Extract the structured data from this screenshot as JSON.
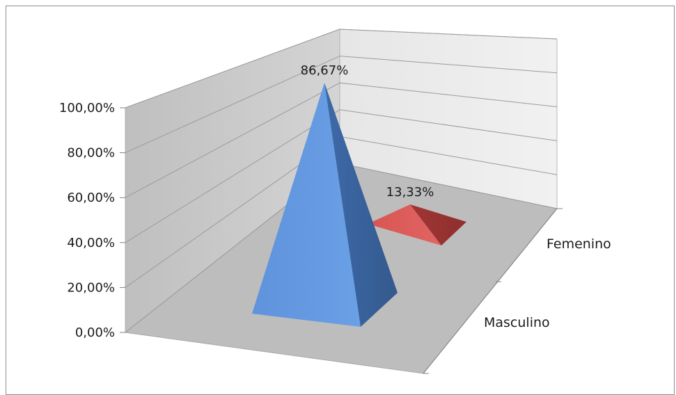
{
  "chart_data": {
    "type": "bar",
    "subtype": "3d-pyramid",
    "categories": [
      "Masculino",
      "Femenino"
    ],
    "values": [
      86.67,
      13.33
    ],
    "data_labels": [
      "86,67%",
      "13,33%"
    ],
    "y_ticks": [
      {
        "value": 0,
        "label": "0,00%"
      },
      {
        "value": 20,
        "label": "20,00%"
      },
      {
        "value": 40,
        "label": "40,00%"
      },
      {
        "value": 60,
        "label": "60,00%"
      },
      {
        "value": 80,
        "label": "80,00%"
      },
      {
        "value": 100,
        "label": "100,00%"
      }
    ],
    "ylim": [
      0,
      100
    ],
    "grid": true,
    "legend": "none",
    "colors": [
      "#5b8fd6",
      "#d44a48"
    ]
  }
}
